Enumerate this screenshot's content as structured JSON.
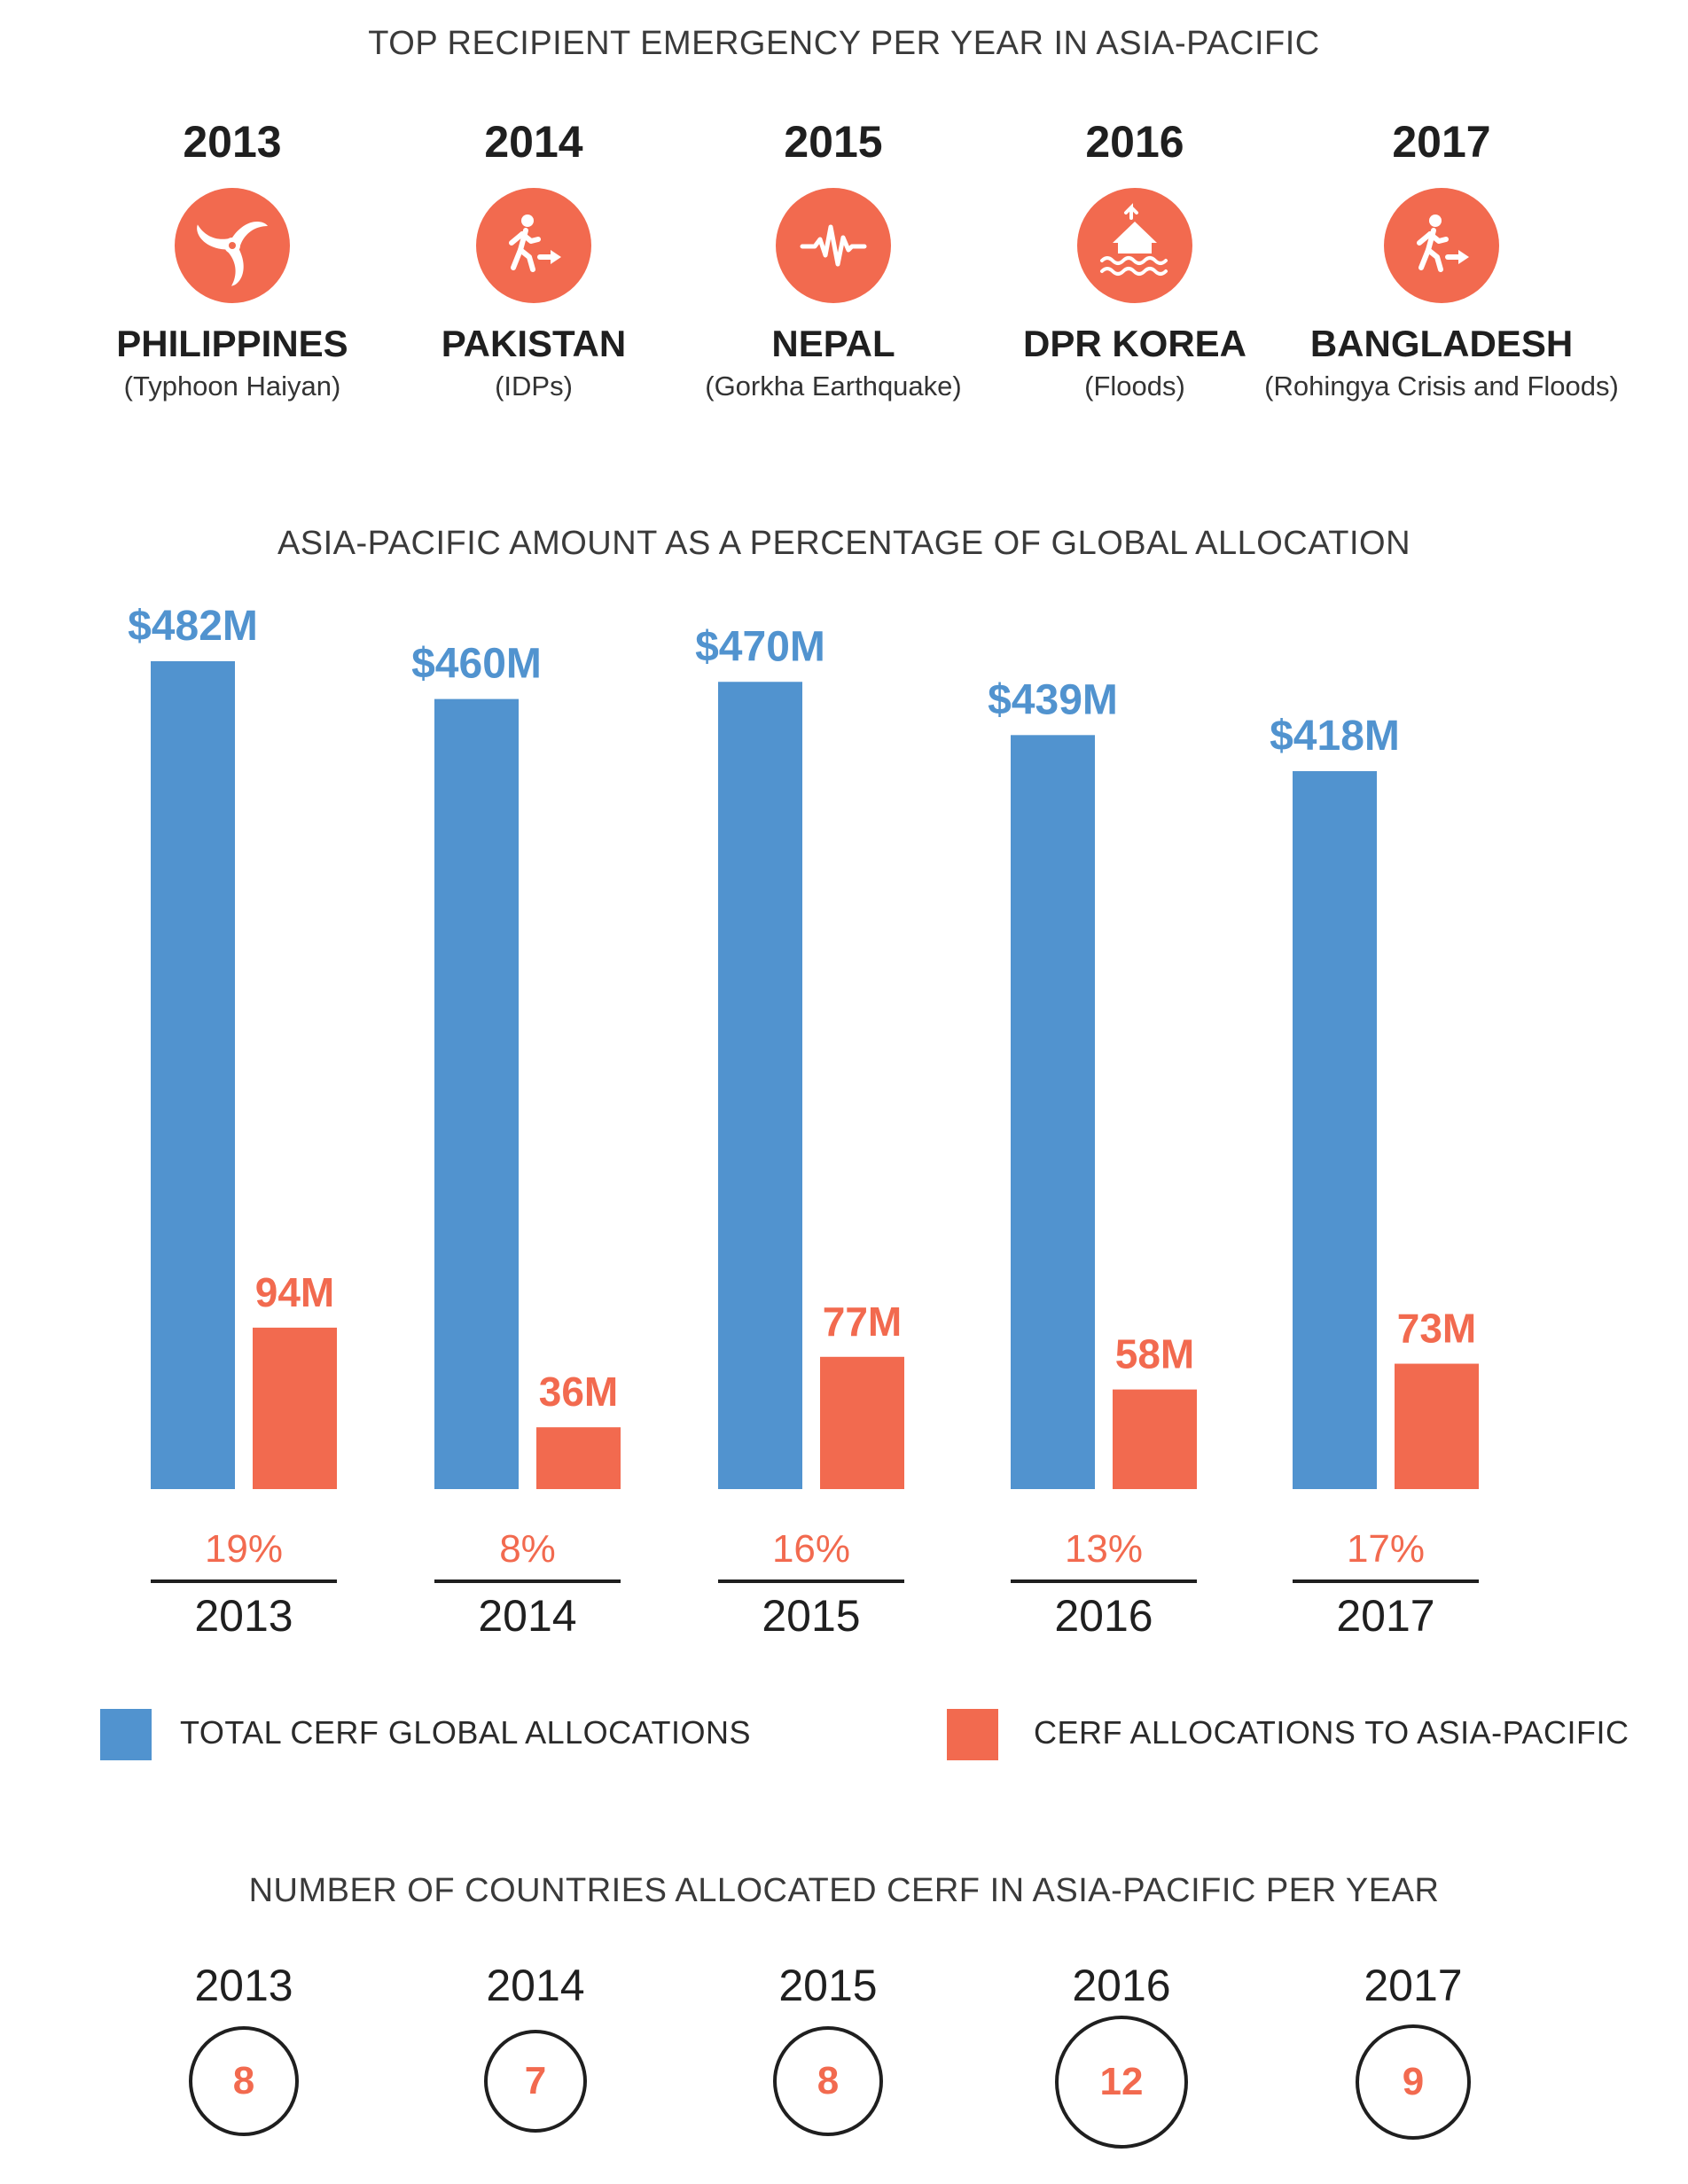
{
  "emergencies": {
    "title": "TOP RECIPIENT EMERGENCY PER YEAR IN ASIA-PACIFIC",
    "items": [
      {
        "year": "2013",
        "country": "PHILIPPINES",
        "event": "(Typhoon Haiyan)",
        "icon": "typhoon-icon"
      },
      {
        "year": "2014",
        "country": "PAKISTAN",
        "event": "(IDPs)",
        "icon": "displaced-person-icon"
      },
      {
        "year": "2015",
        "country": "NEPAL",
        "event": "(Gorkha Earthquake)",
        "icon": "earthquake-icon"
      },
      {
        "year": "2016",
        "country": "DPR KOREA",
        "event": "(Floods)",
        "icon": "flood-icon"
      },
      {
        "year": "2017",
        "country": "BANGLADESH",
        "event": "(Rohingya Crisis and Floods)",
        "icon": "displaced-person-icon"
      }
    ],
    "colors": {
      "icon_bg": "#f26a4f"
    }
  },
  "chart_data": {
    "type": "bar",
    "title": "ASIA-PACIFIC AMOUNT AS A PERCENTAGE OF GLOBAL ALLOCATION",
    "categories": [
      "2013",
      "2014",
      "2015",
      "2016",
      "2017"
    ],
    "series": [
      {
        "name": "TOTAL CERF GLOBAL ALLOCATIONS",
        "values": [
          482,
          460,
          470,
          439,
          418
        ],
        "labels": [
          "$482M",
          "$460M",
          "$470M",
          "$439M",
          "$418M"
        ],
        "color": "#5193cf"
      },
      {
        "name": "CERF ALLOCATIONS TO ASIA-PACIFIC",
        "values": [
          94,
          36,
          77,
          58,
          73
        ],
        "labels": [
          "94M",
          "36M",
          "77M",
          "58M",
          "73M"
        ],
        "color": "#f26a4f"
      }
    ],
    "percentages": [
      "19%",
      "8%",
      "16%",
      "13%",
      "17%"
    ],
    "ylim": [
      0,
      482
    ],
    "grid": false,
    "legend": "bottom"
  },
  "countries": {
    "title": "NUMBER OF COUNTRIES ALLOCATED CERF IN ASIA-PACIFIC PER YEAR",
    "items": [
      {
        "year": "2013",
        "count": 8
      },
      {
        "year": "2014",
        "count": 7
      },
      {
        "year": "2015",
        "count": 8
      },
      {
        "year": "2016",
        "count": 12
      },
      {
        "year": "2017",
        "count": 9
      }
    ]
  }
}
